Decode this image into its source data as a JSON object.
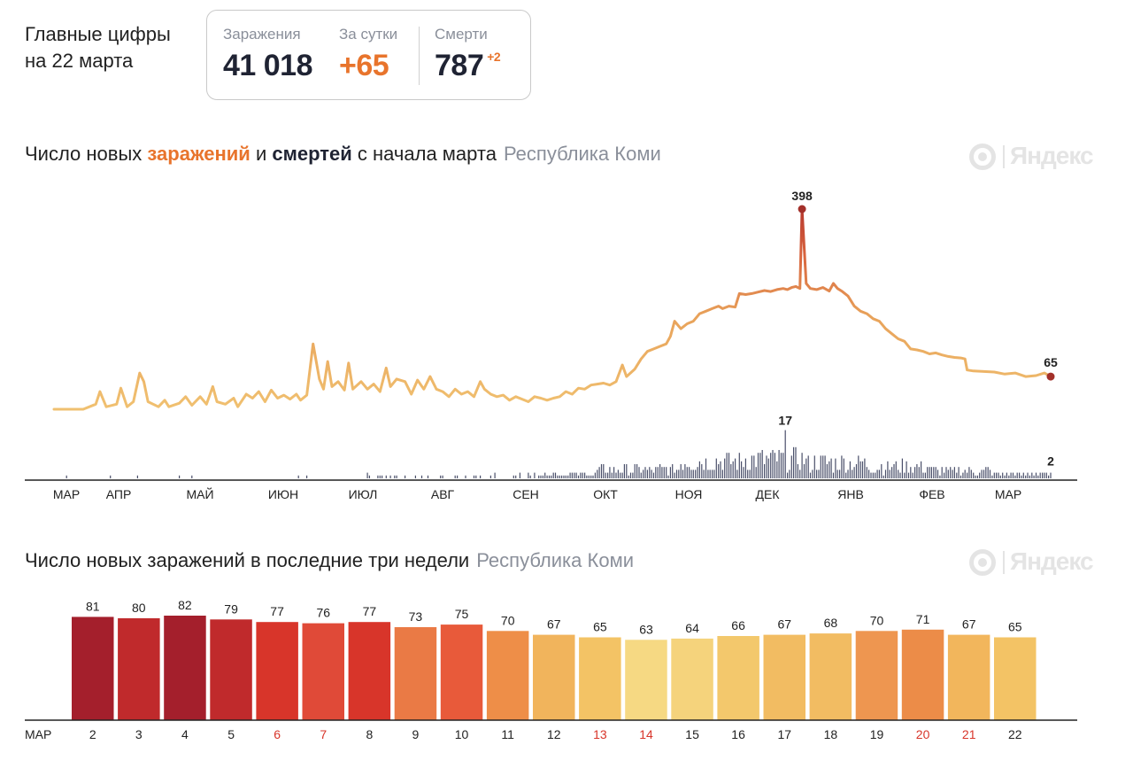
{
  "header": {
    "headline_line1": "Главные цифры",
    "headline_line2": "на 22 марта",
    "stats": {
      "infections_label": "Заражения",
      "infections_value": "41 018",
      "daily_label": "За сутки",
      "daily_value": "+65",
      "deaths_label": "Смерти",
      "deaths_value": "787",
      "deaths_delta": "+2"
    }
  },
  "section1": {
    "title_part1": "Число новых ",
    "title_infections": "заражений",
    "title_part2": " и ",
    "title_deaths": "смертей",
    "title_part3": " с начала марта",
    "region": "Республика Коми",
    "logo_text": "Яндекс"
  },
  "section2": {
    "title": "Число новых заражений в последние три недели",
    "region": "Республика Коми",
    "logo_text": "Яндекс"
  },
  "colors": {
    "low": "#f5d98a",
    "mid": "#f0b55a",
    "orange": "#ea8a46",
    "red": "#d8352a",
    "dark_red": "#a41f2c",
    "deaths": "#4a4f6a",
    "weekend": "#d8352a",
    "text": "#222222"
  },
  "chart_data": [
    {
      "type": "line",
      "title": "Число новых заражений и смертей с начала марта",
      "subtitle": "Республика Коми",
      "x_axis": [
        "МАР",
        "АПР",
        "МАЙ",
        "ИЮН",
        "ИЮЛ",
        "АВГ",
        "СЕН",
        "ОКТ",
        "НОЯ",
        "ДЕК",
        "ЯНВ",
        "ФЕВ",
        "МАР"
      ],
      "series": [
        {
          "name": "Новые заражения",
          "color_low": "#f0c070",
          "color_high": "#b33a30",
          "points": [
            [
              0,
              0
            ],
            [
              14,
              0
            ],
            [
              20,
              10
            ],
            [
              22,
              35
            ],
            [
              25,
              5
            ],
            [
              30,
              10
            ],
            [
              32,
              42
            ],
            [
              35,
              5
            ],
            [
              38,
              15
            ],
            [
              41,
              72
            ],
            [
              43,
              55
            ],
            [
              45,
              15
            ],
            [
              50,
              5
            ],
            [
              53,
              18
            ],
            [
              55,
              5
            ],
            [
              60,
              12
            ],
            [
              63,
              25
            ],
            [
              66,
              8
            ],
            [
              70,
              25
            ],
            [
              73,
              10
            ],
            [
              76,
              45
            ],
            [
              78,
              15
            ],
            [
              82,
              10
            ],
            [
              86,
              22
            ],
            [
              88,
              5
            ],
            [
              92,
              30
            ],
            [
              95,
              22
            ],
            [
              98,
              35
            ],
            [
              101,
              15
            ],
            [
              104,
              38
            ],
            [
              107,
              22
            ],
            [
              110,
              28
            ],
            [
              113,
              20
            ],
            [
              116,
              30
            ],
            [
              118,
              18
            ],
            [
              121,
              28
            ],
            [
              124,
              130
            ],
            [
              127,
              60
            ],
            [
              129,
              40
            ],
            [
              131,
              95
            ],
            [
              133,
              45
            ],
            [
              136,
              55
            ],
            [
              139,
              38
            ],
            [
              141,
              92
            ],
            [
              143,
              40
            ],
            [
              147,
              55
            ],
            [
              150,
              40
            ],
            [
              153,
              50
            ],
            [
              156,
              35
            ],
            [
              159,
              82
            ],
            [
              161,
              45
            ],
            [
              164,
              60
            ],
            [
              168,
              55
            ],
            [
              171,
              30
            ],
            [
              174,
              58
            ],
            [
              177,
              40
            ],
            [
              180,
              65
            ],
            [
              183,
              40
            ],
            [
              186,
              35
            ],
            [
              189,
              25
            ],
            [
              192,
              40
            ],
            [
              195,
              30
            ],
            [
              198,
              35
            ],
            [
              201,
              25
            ],
            [
              204,
              55
            ],
            [
              206,
              40
            ],
            [
              209,
              30
            ],
            [
              212,
              25
            ],
            [
              215,
              28
            ],
            [
              218,
              18
            ],
            [
              221,
              25
            ],
            [
              224,
              20
            ],
            [
              227,
              15
            ],
            [
              230,
              25
            ],
            [
              233,
              22
            ],
            [
              236,
              18
            ],
            [
              239,
              22
            ],
            [
              242,
              25
            ],
            [
              245,
              35
            ],
            [
              248,
              30
            ],
            [
              251,
              42
            ],
            [
              254,
              40
            ],
            [
              257,
              48
            ],
            [
              260,
              50
            ],
            [
              263,
              52
            ],
            [
              266,
              48
            ],
            [
              269,
              55
            ],
            [
              272,
              88
            ],
            [
              274,
              65
            ],
            [
              278,
              80
            ],
            [
              281,
              100
            ],
            [
              284,
              115
            ],
            [
              287,
              120
            ],
            [
              290,
              125
            ],
            [
              293,
              130
            ],
            [
              295,
              145
            ],
            [
              297,
              175
            ],
            [
              300,
              160
            ],
            [
              303,
              170
            ],
            [
              306,
              175
            ],
            [
              309,
              190
            ],
            [
              312,
              195
            ],
            [
              315,
              200
            ],
            [
              318,
              205
            ],
            [
              320,
              200
            ],
            [
              323,
              205
            ],
            [
              326,
              203
            ],
            [
              328,
              230
            ],
            [
              331,
              228
            ],
            [
              334,
              230
            ],
            [
              337,
              233
            ],
            [
              340,
              236
            ],
            [
              343,
              234
            ],
            [
              346,
              238
            ],
            [
              349,
              240
            ],
            [
              351,
              238
            ],
            [
              353,
              242
            ],
            [
              355,
              244
            ],
            [
              357,
              240
            ],
            [
              358,
              398
            ],
            [
              360,
              250
            ],
            [
              362,
              240
            ],
            [
              365,
              238
            ],
            [
              368,
              242
            ],
            [
              371,
              235
            ],
            [
              373,
              250
            ],
            [
              375,
              240
            ],
            [
              377,
              235
            ],
            [
              380,
              225
            ],
            [
              383,
              205
            ],
            [
              386,
              195
            ],
            [
              389,
              190
            ],
            [
              392,
              180
            ],
            [
              395,
              175
            ],
            [
              398,
              160
            ],
            [
              401,
              150
            ],
            [
              404,
              140
            ],
            [
              407,
              135
            ],
            [
              410,
              120
            ],
            [
              413,
              118
            ],
            [
              416,
              115
            ],
            [
              419,
              110
            ],
            [
              422,
              112
            ],
            [
              425,
              108
            ],
            [
              428,
              105
            ],
            [
              431,
              103
            ],
            [
              434,
              102
            ],
            [
              436,
              100
            ],
            [
              437,
              78
            ],
            [
              440,
              76
            ],
            [
              445,
              75
            ],
            [
              450,
              74
            ],
            [
              455,
              70
            ],
            [
              460,
              72
            ],
            [
              465,
              65
            ],
            [
              470,
              67
            ],
            [
              474,
              72
            ],
            [
              477,
              65
            ]
          ],
          "peak_label": "398",
          "last_label": "65"
        },
        {
          "name": "Смерти",
          "color": "#4a4f6a",
          "values_description": "daily deaths, max 17 in December, last value 2",
          "peak_label": "17",
          "last_label": "2"
        }
      ]
    },
    {
      "type": "bar",
      "title": "Число новых заражений в последние три недели",
      "subtitle": "Республика Коми",
      "month_label": "МАР",
      "categories": [
        "2",
        "3",
        "4",
        "5",
        "6",
        "7",
        "8",
        "9",
        "10",
        "11",
        "12",
        "13",
        "14",
        "15",
        "16",
        "17",
        "18",
        "19",
        "20",
        "21",
        "22"
      ],
      "weekend_categories": [
        "6",
        "7",
        "13",
        "14",
        "20",
        "21"
      ],
      "values": [
        81,
        80,
        82,
        79,
        77,
        76,
        77,
        73,
        75,
        70,
        67,
        65,
        63,
        64,
        66,
        67,
        68,
        70,
        71,
        67,
        65
      ],
      "bar_colors": [
        "#a41f2c",
        "#c02a2c",
        "#a41f2c",
        "#c02a2c",
        "#d8352a",
        "#e04a38",
        "#d8352a",
        "#ea7a45",
        "#e85a3a",
        "#ee8e48",
        "#f1b45c",
        "#f3c365",
        "#f6d983",
        "#f5d37c",
        "#f3c86c",
        "#f2bc62",
        "#f2bc62",
        "#ee9650",
        "#ec8c48",
        "#f2b65c",
        "#f3c365"
      ],
      "ylim": [
        0,
        90
      ]
    }
  ]
}
